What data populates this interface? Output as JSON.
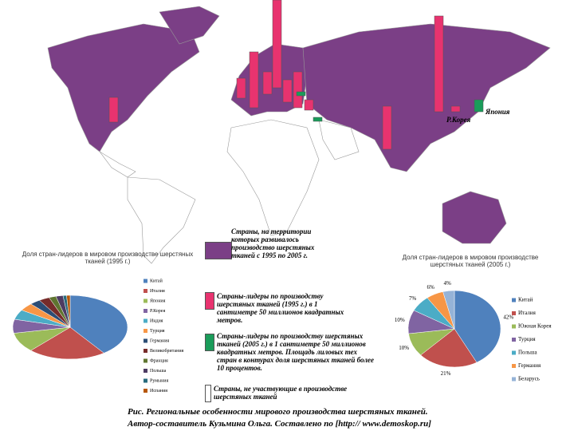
{
  "map": {
    "labels": [
      "Япония",
      "Р.Корея"
    ],
    "bars": [
      {
        "color": "#e8336f",
        "value": 31
      },
      {
        "color": "#e8336f",
        "value": 25
      },
      {
        "color": "#e8336f",
        "value": 70
      },
      {
        "color": "#e8336f",
        "value": 28
      },
      {
        "color": "#e8336f",
        "value": 110
      },
      {
        "color": "#e8336f",
        "value": 28
      },
      {
        "color": "#e8336f",
        "value": 45
      },
      {
        "color": "#1a9c5a",
        "value": 5
      },
      {
        "color": "#e8336f",
        "value": 13
      },
      {
        "color": "#1a9c5a",
        "value": 5
      },
      {
        "color": "#e8336f",
        "value": 54
      },
      {
        "color": "#e8336f",
        "value": 120
      },
      {
        "color": "#e8336f",
        "value": 7
      },
      {
        "color": "#1a9c5a",
        "value": 15
      }
    ]
  },
  "legend": [
    {
      "color": "#7b3f86",
      "text": "Страны, на территории которых развивалось производство шерстяных тканей с 1995 по 2005 г."
    },
    {
      "color": "#e8336f",
      "text": "Страны-лидеры по производству шерстяных тканей (1995 г.) в 1 сантиметре 50 миллионов квадратных метров."
    },
    {
      "color": "#1a9c5a",
      "text": "Страны-лидеры по производству шерстяных тканей (2005 г.) в 1 сантиметре 50 миллионов квадратных метров. Площадь лиловых тех стран в контурах доля шерстяных тканей более 10 процентов."
    },
    {
      "color": "#ffffff",
      "text": "Страны, не участвующие в производстве шерстяных тканей"
    }
  ],
  "chart_data": [
    {
      "type": "pie",
      "title": "Доля стран-лидеров в мировом производстве шерстяных тканей (1995 г.)",
      "categories": [
        "Китай",
        "Италия",
        "Япония",
        "Р.Корея",
        "Индия",
        "Турция",
        "Германия",
        "Великобритания",
        "Франция",
        "Польша",
        "Румыния",
        "Испания"
      ],
      "values": [
        40,
        22,
        10,
        7,
        5,
        4,
        3,
        3,
        2,
        2,
        1,
        1
      ],
      "colors": [
        "#4f81bd",
        "#c0504d",
        "#9bbb59",
        "#8064a2",
        "#4bacc6",
        "#f79646",
        "#2c4d75",
        "#772c2a",
        "#5f7530",
        "#4d3b62",
        "#276a7c",
        "#b65708"
      ]
    },
    {
      "type": "pie",
      "title": "Доля стран-лидеров в мировом производстве шерстяных тканей (2005 г.)",
      "categories": [
        "Китай",
        "Италия",
        "Южная Корея",
        "Турция",
        "Польша",
        "Германия",
        "Беларусь"
      ],
      "values": [
        42,
        21,
        10,
        10,
        7,
        6,
        4
      ],
      "value_labels": [
        "42%",
        "21%",
        "10%",
        "10%",
        "7%",
        "6%",
        "4%"
      ],
      "colors": [
        "#4f81bd",
        "#c0504d",
        "#9bbb59",
        "#8064a2",
        "#4bacc6",
        "#f79646",
        "#95b3d7"
      ]
    }
  ],
  "caption": [
    "Рис. Региональные особенности мирового производства шерстяных тканей.",
    "Автор-составитель Кузьмина Ольга. Составлено по [http:// www.demoskop.ru]"
  ]
}
